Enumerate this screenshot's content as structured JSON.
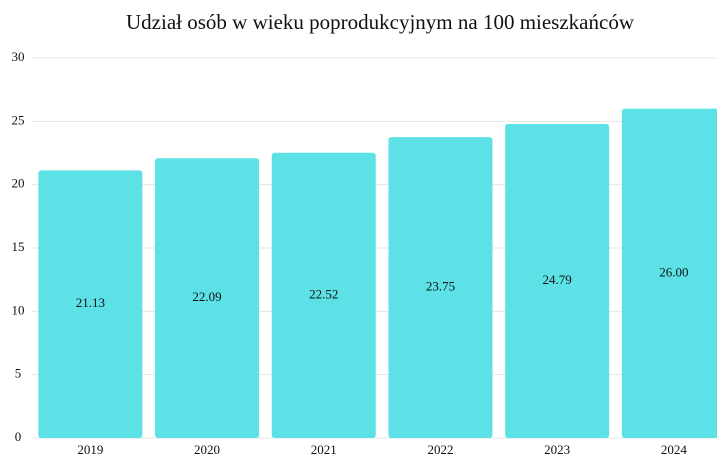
{
  "chart_data": {
    "type": "bar",
    "title": "Udział osób w wieku poprodukcyjnym na 100 mieszkańców",
    "categories": [
      "2019",
      "2020",
      "2021",
      "2022",
      "2023",
      "2024"
    ],
    "values": [
      21.13,
      22.09,
      22.52,
      23.75,
      24.79,
      26
    ],
    "value_labels": [
      "21.13",
      "22.09",
      "22.52",
      "23.75",
      "24.79",
      "26.00"
    ],
    "color": "#5ce1e6",
    "ylim": [
      0,
      30
    ],
    "yticks": [
      0,
      5,
      10,
      15,
      20,
      25,
      30
    ],
    "grid": true
  }
}
